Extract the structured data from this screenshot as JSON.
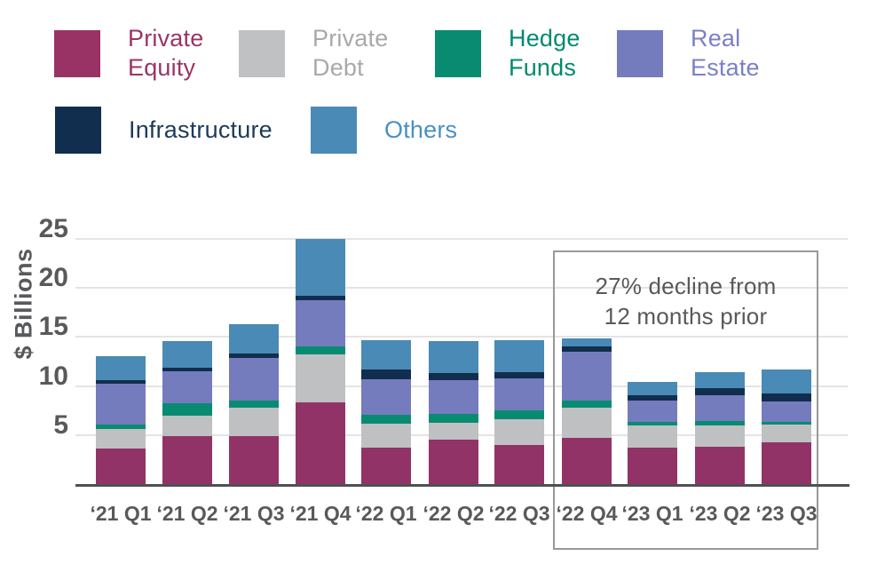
{
  "legend": {
    "items": [
      {
        "label": "Private\nEquity",
        "swatch_color": "#993366",
        "text_color": "#9a3468"
      },
      {
        "label": "Private\nDebt",
        "swatch_color": "#c0c1c3",
        "text_color": "#a8a9ab"
      },
      {
        "label": "Hedge\nFunds",
        "swatch_color": "#098b72",
        "text_color": "#008a70"
      },
      {
        "label": "Real\nEstate",
        "swatch_color": "#747cbe",
        "text_color": "#7b80c6"
      },
      {
        "label": "Infrastructure",
        "swatch_color": "#112e4e",
        "text_color": "#1d3a5a"
      },
      {
        "label": "Others",
        "swatch_color": "#4a8ab6",
        "text_color": "#4a90c4"
      }
    ]
  },
  "chart_data": {
    "type": "bar",
    "stacked": true,
    "title": "",
    "xlabel": "",
    "ylabel": "$ Billions",
    "ylim": [
      0,
      25
    ],
    "yticks": [
      5,
      10,
      15,
      20,
      25
    ],
    "grid": true,
    "legend_position": "top",
    "categories": [
      "‘21 Q1",
      "‘21 Q2",
      "‘21 Q3",
      "‘21 Q4",
      "‘22 Q1",
      "‘22 Q2",
      "‘22 Q3",
      "‘22 Q4",
      "‘23 Q1",
      "‘23 Q2",
      "‘23 Q3"
    ],
    "series": [
      {
        "name": "Private Equity",
        "color": "#923367",
        "values": [
          3.6,
          4.9,
          4.9,
          8.3,
          3.7,
          4.5,
          4.0,
          4.75,
          3.7,
          3.8,
          4.3
        ]
      },
      {
        "name": "Private Debt",
        "color": "#bfc0c2",
        "values": [
          2.0,
          2.1,
          2.9,
          4.9,
          2.5,
          1.75,
          2.6,
          3.05,
          2.25,
          2.2,
          1.75
        ]
      },
      {
        "name": "Hedge Funds",
        "color": "#098b72",
        "values": [
          0.5,
          1.2,
          0.75,
          0.85,
          0.9,
          0.95,
          0.95,
          0.75,
          0.35,
          0.4,
          0.3
        ]
      },
      {
        "name": "Real Estate",
        "color": "#747cbe",
        "values": [
          4.1,
          3.3,
          4.35,
          4.7,
          3.6,
          3.4,
          3.25,
          4.95,
          2.25,
          2.65,
          2.1
        ]
      },
      {
        "name": "Infrastructure",
        "color": "#112e4e",
        "values": [
          0.4,
          0.4,
          0.4,
          0.45,
          0.95,
          0.75,
          0.65,
          0.55,
          0.55,
          0.7,
          0.75
        ]
      },
      {
        "name": "Others",
        "color": "#4a8ab6",
        "values": [
          2.4,
          2.7,
          3.0,
          5.8,
          3.0,
          3.25,
          3.2,
          0.85,
          1.35,
          1.65,
          2.45
        ]
      }
    ],
    "totals": [
      13.0,
      14.6,
      16.3,
      25.0,
      14.65,
      14.6,
      14.65,
      14.9,
      10.45,
      11.4,
      11.65
    ],
    "annotation": {
      "text": "27% decline from\n12 months prior",
      "applies_to": [
        "‘22 Q4",
        "‘23 Q1",
        "‘23 Q2",
        "‘23 Q3"
      ]
    }
  }
}
